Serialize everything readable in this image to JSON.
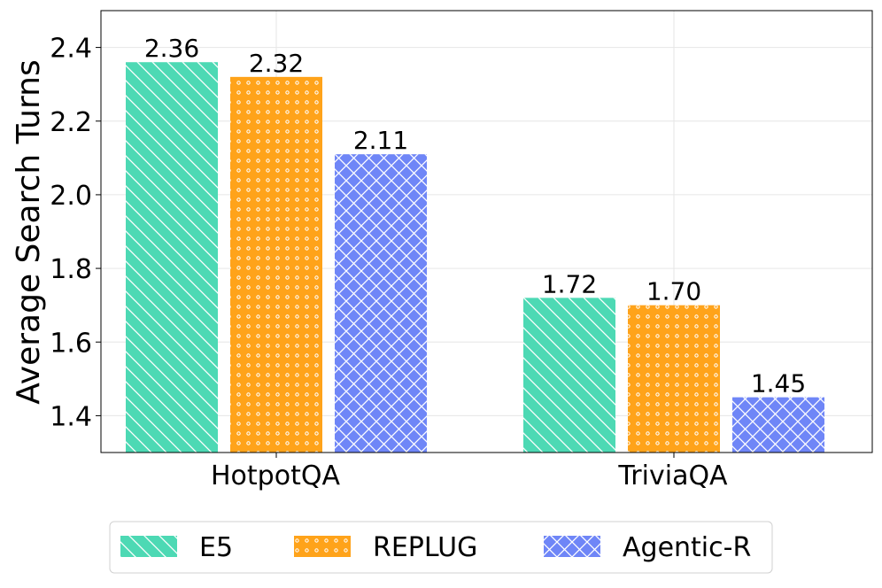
{
  "chart_data": {
    "type": "bar",
    "title": "",
    "xlabel": "",
    "ylabel": "Average Search Turns",
    "categories": [
      "HotpotQA",
      "TriviaQA"
    ],
    "series": [
      {
        "name": "E5",
        "values": [
          2.36,
          1.72
        ],
        "labels": [
          "2.36",
          "1.72"
        ],
        "color": "#4dd9b4",
        "pattern": "diagonal"
      },
      {
        "name": "REPLUG",
        "values": [
          2.32,
          1.7
        ],
        "labels": [
          "2.32",
          "1.70"
        ],
        "color": "#ffa31a",
        "pattern": "dots"
      },
      {
        "name": "Agentic-R",
        "values": [
          2.11,
          1.45
        ],
        "labels": [
          "2.11",
          "1.45"
        ],
        "color": "#6f86f7",
        "pattern": "crosshatch"
      }
    ],
    "ylim": [
      1.3,
      2.5
    ],
    "yticks": [
      1.4,
      1.6,
      1.8,
      2.0,
      2.2,
      2.4
    ],
    "ytick_labels": [
      "1.4",
      "1.6",
      "1.8",
      "2.0",
      "2.2",
      "2.4"
    ],
    "grid": true,
    "legend_position": "bottom-center"
  }
}
